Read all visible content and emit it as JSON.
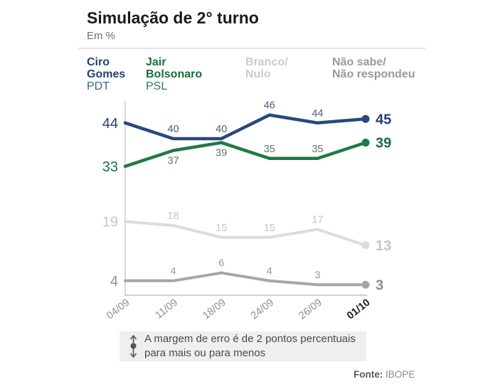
{
  "header": {
    "title": "Simulação de 2° turno",
    "subtitle": "Em %"
  },
  "legend": {
    "items": [
      {
        "line1": "Ciro",
        "line2": "Gomes",
        "party": "PDT",
        "name_color": "#263f72",
        "party_color": "#38678c"
      },
      {
        "line1": "Jair",
        "line2": "Bolsonaro",
        "party": "PSL",
        "name_color": "#1d6b3c",
        "party_color": "#2e7d52"
      },
      {
        "line1": "Branco/",
        "line2": "Nulo",
        "party": "",
        "name_color": "#cccccc",
        "party_color": "#cccccc"
      },
      {
        "line1": "Não sabe/",
        "line2": "Não respondeu",
        "party": "",
        "name_color": "#9a9a9a",
        "party_color": "#9a9a9a"
      }
    ]
  },
  "chart_data": {
    "type": "line",
    "title": "Simulação de 2° turno",
    "subtitle": "Em %",
    "categories": [
      "04/09",
      "11/09",
      "18/09",
      "24/09",
      "26/09",
      "01/10"
    ],
    "series": [
      {
        "name": "Ciro Gomes (PDT)",
        "values": [
          44,
          40,
          40,
          46,
          44,
          45
        ],
        "color": "#27497e",
        "edge_label_color": "#223e74",
        "mid_label_color": "#4d5e80",
        "width": 4.5,
        "label_positions": [
          "above",
          "above",
          "above",
          "above"
        ]
      },
      {
        "name": "Jair Bolsonaro (PSL)",
        "values": [
          33,
          37,
          39,
          35,
          35,
          39
        ],
        "color": "#1f7a45",
        "edge_label_color": "#1c6f3e",
        "mid_label_color": "#5d7a64",
        "width": 4.5,
        "label_positions": [
          "below",
          "below",
          "above",
          "above"
        ]
      },
      {
        "name": "Branco/Nulo",
        "values": [
          19,
          18,
          15,
          15,
          17,
          13
        ],
        "color": "#dcdcdc",
        "edge_label_color": "#c6c6c6",
        "mid_label_color": "#c6c6c6",
        "width": 4,
        "label_positions": [
          "above",
          "above",
          "above",
          "above"
        ]
      },
      {
        "name": "Não sabe/Não respondeu",
        "values": [
          4,
          4,
          6,
          4,
          3,
          3
        ],
        "color": "#a6a6a6",
        "edge_label_color": "#8c8c8c",
        "mid_label_color": "#9a9a9a",
        "width": 4,
        "label_positions": [
          "above",
          "above",
          "above",
          "above"
        ]
      }
    ],
    "xlabel": "",
    "ylabel": "Em %",
    "ylim": [
      0,
      50
    ],
    "grid": false,
    "legend_position": "top",
    "x_tick_rotation": -38,
    "tick_color": "#8f8f8f",
    "last_tick_color": "#1d1d1d",
    "axis_color": "#d9d9d9"
  },
  "footnote": {
    "line1": "A margem de erro é de 2 pontos percentuais",
    "line2": "para mais ou para menos"
  },
  "source": {
    "label": "Fonte:",
    "value": "IBOPE"
  }
}
